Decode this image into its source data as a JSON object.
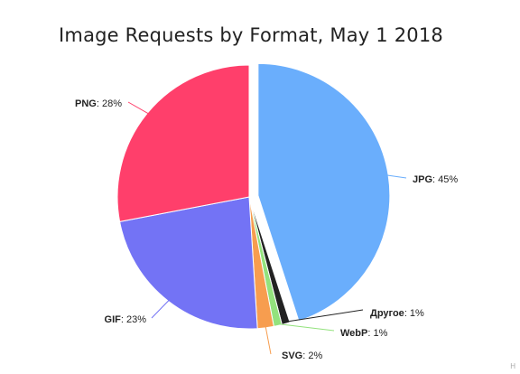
{
  "chart_data": {
    "type": "pie",
    "title": "Image Requests by Format, May 1 2018",
    "start_angle_deg": 0,
    "direction": "clockwise",
    "slices": [
      {
        "label": "JPG",
        "value": 45,
        "display": "45%",
        "color": "#6aaefc",
        "exploded": true
      },
      {
        "label": "Другое",
        "value": 1,
        "display": "1%",
        "color": "#222222",
        "exploded": false
      },
      {
        "label": "WebP",
        "value": 1,
        "display": "1%",
        "color": "#93e27d",
        "exploded": false
      },
      {
        "label": "SVG",
        "value": 2,
        "display": "2%",
        "color": "#f79d4f",
        "exploded": false
      },
      {
        "label": "GIF",
        "value": 23,
        "display": "23%",
        "color": "#7373f5",
        "exploded": false
      },
      {
        "label": "PNG",
        "value": 28,
        "display": "28%",
        "color": "#ff3f6b",
        "exploded": false
      }
    ]
  },
  "credit": "H"
}
